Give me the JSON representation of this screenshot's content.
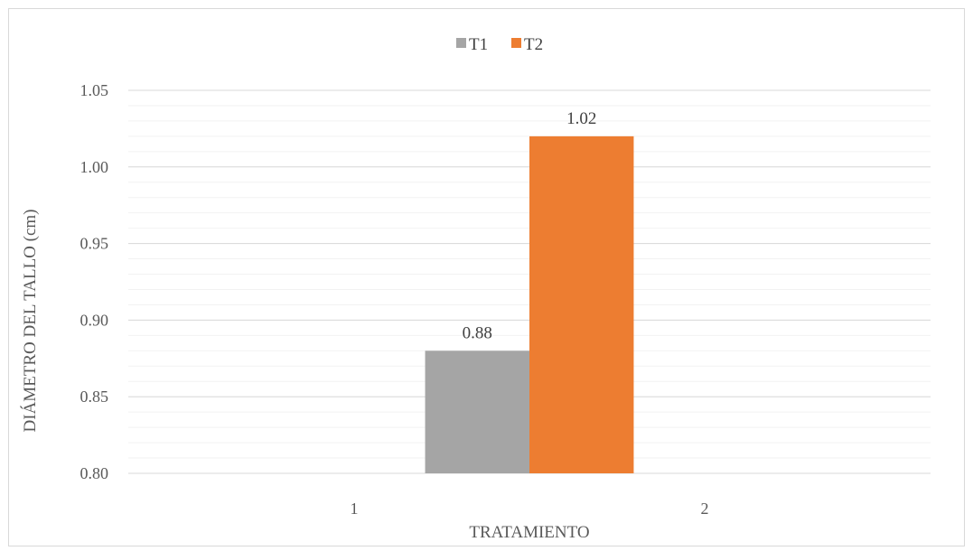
{
  "chart_data": {
    "type": "bar",
    "categories": [
      "1",
      "2"
    ],
    "series": [
      {
        "name": "T1",
        "values": [
          0.88,
          null
        ],
        "color": "#a5a5a5"
      },
      {
        "name": "T2",
        "values": [
          null,
          1.02
        ],
        "color": "#ed7d31"
      }
    ],
    "data_labels": [
      "0.88",
      "1.02"
    ],
    "title": "",
    "xlabel": "TRATAMIENTO",
    "ylabel": "DIÁMETRO DEL TALLO (cm)",
    "ylim": [
      0.8,
      1.05
    ],
    "yticks": [
      "0.80",
      "0.85",
      "0.90",
      "0.95",
      "1.00",
      "1.05"
    ],
    "major_step": 0.05,
    "minor_step": 0.01,
    "grid": true,
    "legend_position": "top"
  }
}
